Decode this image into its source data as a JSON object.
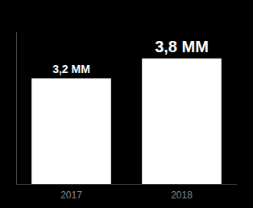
{
  "chart_data": {
    "type": "bar",
    "categories": [
      "2017",
      "2018"
    ],
    "values": [
      3.2,
      3.8
    ],
    "value_labels": [
      "3,2 MM",
      "3,8 MM"
    ],
    "data_labels": true,
    "color": "#ffffff",
    "ylim": [
      0,
      4.6
    ],
    "grid": false,
    "tick_labels": "x"
  }
}
